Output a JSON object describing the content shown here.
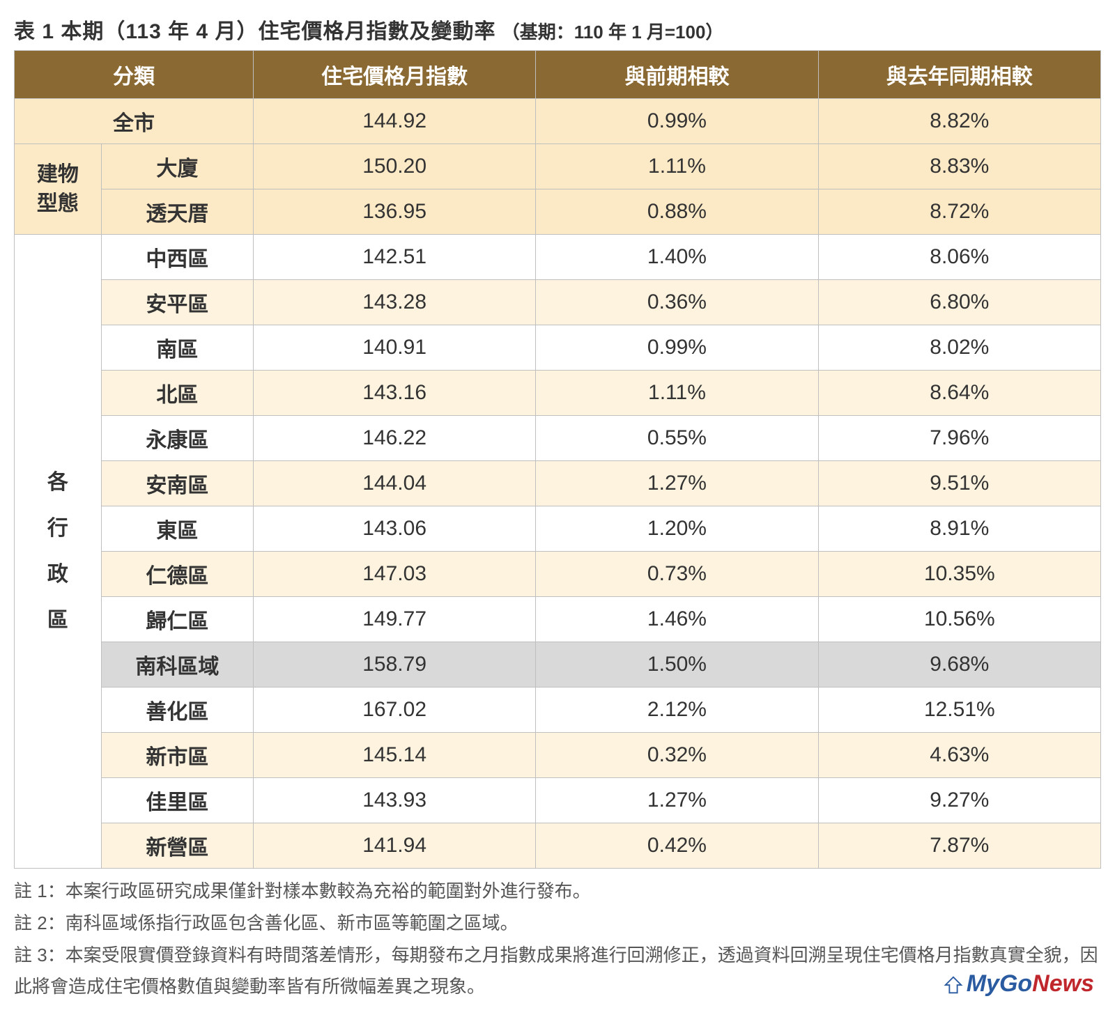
{
  "title": {
    "main": "表 1 本期（113 年 4 月）住宅價格月指數及變動率",
    "sub": "（基期：110 年 1 月=100）"
  },
  "columns": {
    "category": "分類",
    "index": "住宅價格月指數",
    "mom": "與前期相較",
    "yoy": "與去年同期相較"
  },
  "group1": {
    "label": "全市",
    "index": "144.92",
    "mom": "0.99%",
    "yoy": "8.82%"
  },
  "group2": {
    "label": "建物型態",
    "rows": [
      {
        "name": "大廈",
        "index": "150.20",
        "mom": "1.11%",
        "yoy": "8.83%"
      },
      {
        "name": "透天厝",
        "index": "136.95",
        "mom": "0.88%",
        "yoy": "8.72%"
      }
    ]
  },
  "group3": {
    "label": "各行政區",
    "label_chars": [
      "各",
      "行",
      "政",
      "區"
    ],
    "rows": [
      {
        "name": "中西區",
        "index": "142.51",
        "mom": "1.40%",
        "yoy": "8.06%",
        "gray": false
      },
      {
        "name": "安平區",
        "index": "143.28",
        "mom": "0.36%",
        "yoy": "6.80%",
        "gray": false
      },
      {
        "name": "南區",
        "index": "140.91",
        "mom": "0.99%",
        "yoy": "8.02%",
        "gray": false
      },
      {
        "name": "北區",
        "index": "143.16",
        "mom": "1.11%",
        "yoy": "8.64%",
        "gray": false
      },
      {
        "name": "永康區",
        "index": "146.22",
        "mom": "0.55%",
        "yoy": "7.96%",
        "gray": false
      },
      {
        "name": "安南區",
        "index": "144.04",
        "mom": "1.27%",
        "yoy": "9.51%",
        "gray": false
      },
      {
        "name": "東區",
        "index": "143.06",
        "mom": "1.20%",
        "yoy": "8.91%",
        "gray": false
      },
      {
        "name": "仁德區",
        "index": "147.03",
        "mom": "0.73%",
        "yoy": "10.35%",
        "gray": false
      },
      {
        "name": "歸仁區",
        "index": "149.77",
        "mom": "1.46%",
        "yoy": "10.56%",
        "gray": false
      },
      {
        "name": "南科區域",
        "index": "158.79",
        "mom": "1.50%",
        "yoy": "9.68%",
        "gray": true
      },
      {
        "name": "善化區",
        "index": "167.02",
        "mom": "2.12%",
        "yoy": "12.51%",
        "gray": false
      },
      {
        "name": "新市區",
        "index": "145.14",
        "mom": "0.32%",
        "yoy": "4.63%",
        "gray": false
      },
      {
        "name": "佳里區",
        "index": "143.93",
        "mom": "1.27%",
        "yoy": "9.27%",
        "gray": false
      },
      {
        "name": "新營區",
        "index": "141.94",
        "mom": "0.42%",
        "yoy": "7.87%",
        "gray": false
      }
    ]
  },
  "notes": [
    "註 1：本案行政區研究成果僅針對樣本數較為充裕的範圍對外進行發布。",
    "註 2：南科區域係指行政區包含善化區、新市區等範圍之區域。",
    "註 3：本案受限實價登錄資料有時間落差情形，每期發布之月指數成果將進行回溯修正，透過資料回溯呈現住宅價格月指數真實全貌，因此將會造成住宅價格數值與變動率皆有所微幅差異之現象。"
  ],
  "logo": {
    "my": "My",
    "go": "Go",
    "news": "News"
  },
  "style": {
    "header_bg": "#8a6a32",
    "header_fg": "#ffffff",
    "highlight_bg": "#fce9c6",
    "alt_bg": "#fdf3df",
    "gray_bg": "#d9d9d9",
    "border": "#bfbfbf",
    "font_size_title": 30,
    "font_size_cell": 30,
    "font_size_notes": 26
  }
}
